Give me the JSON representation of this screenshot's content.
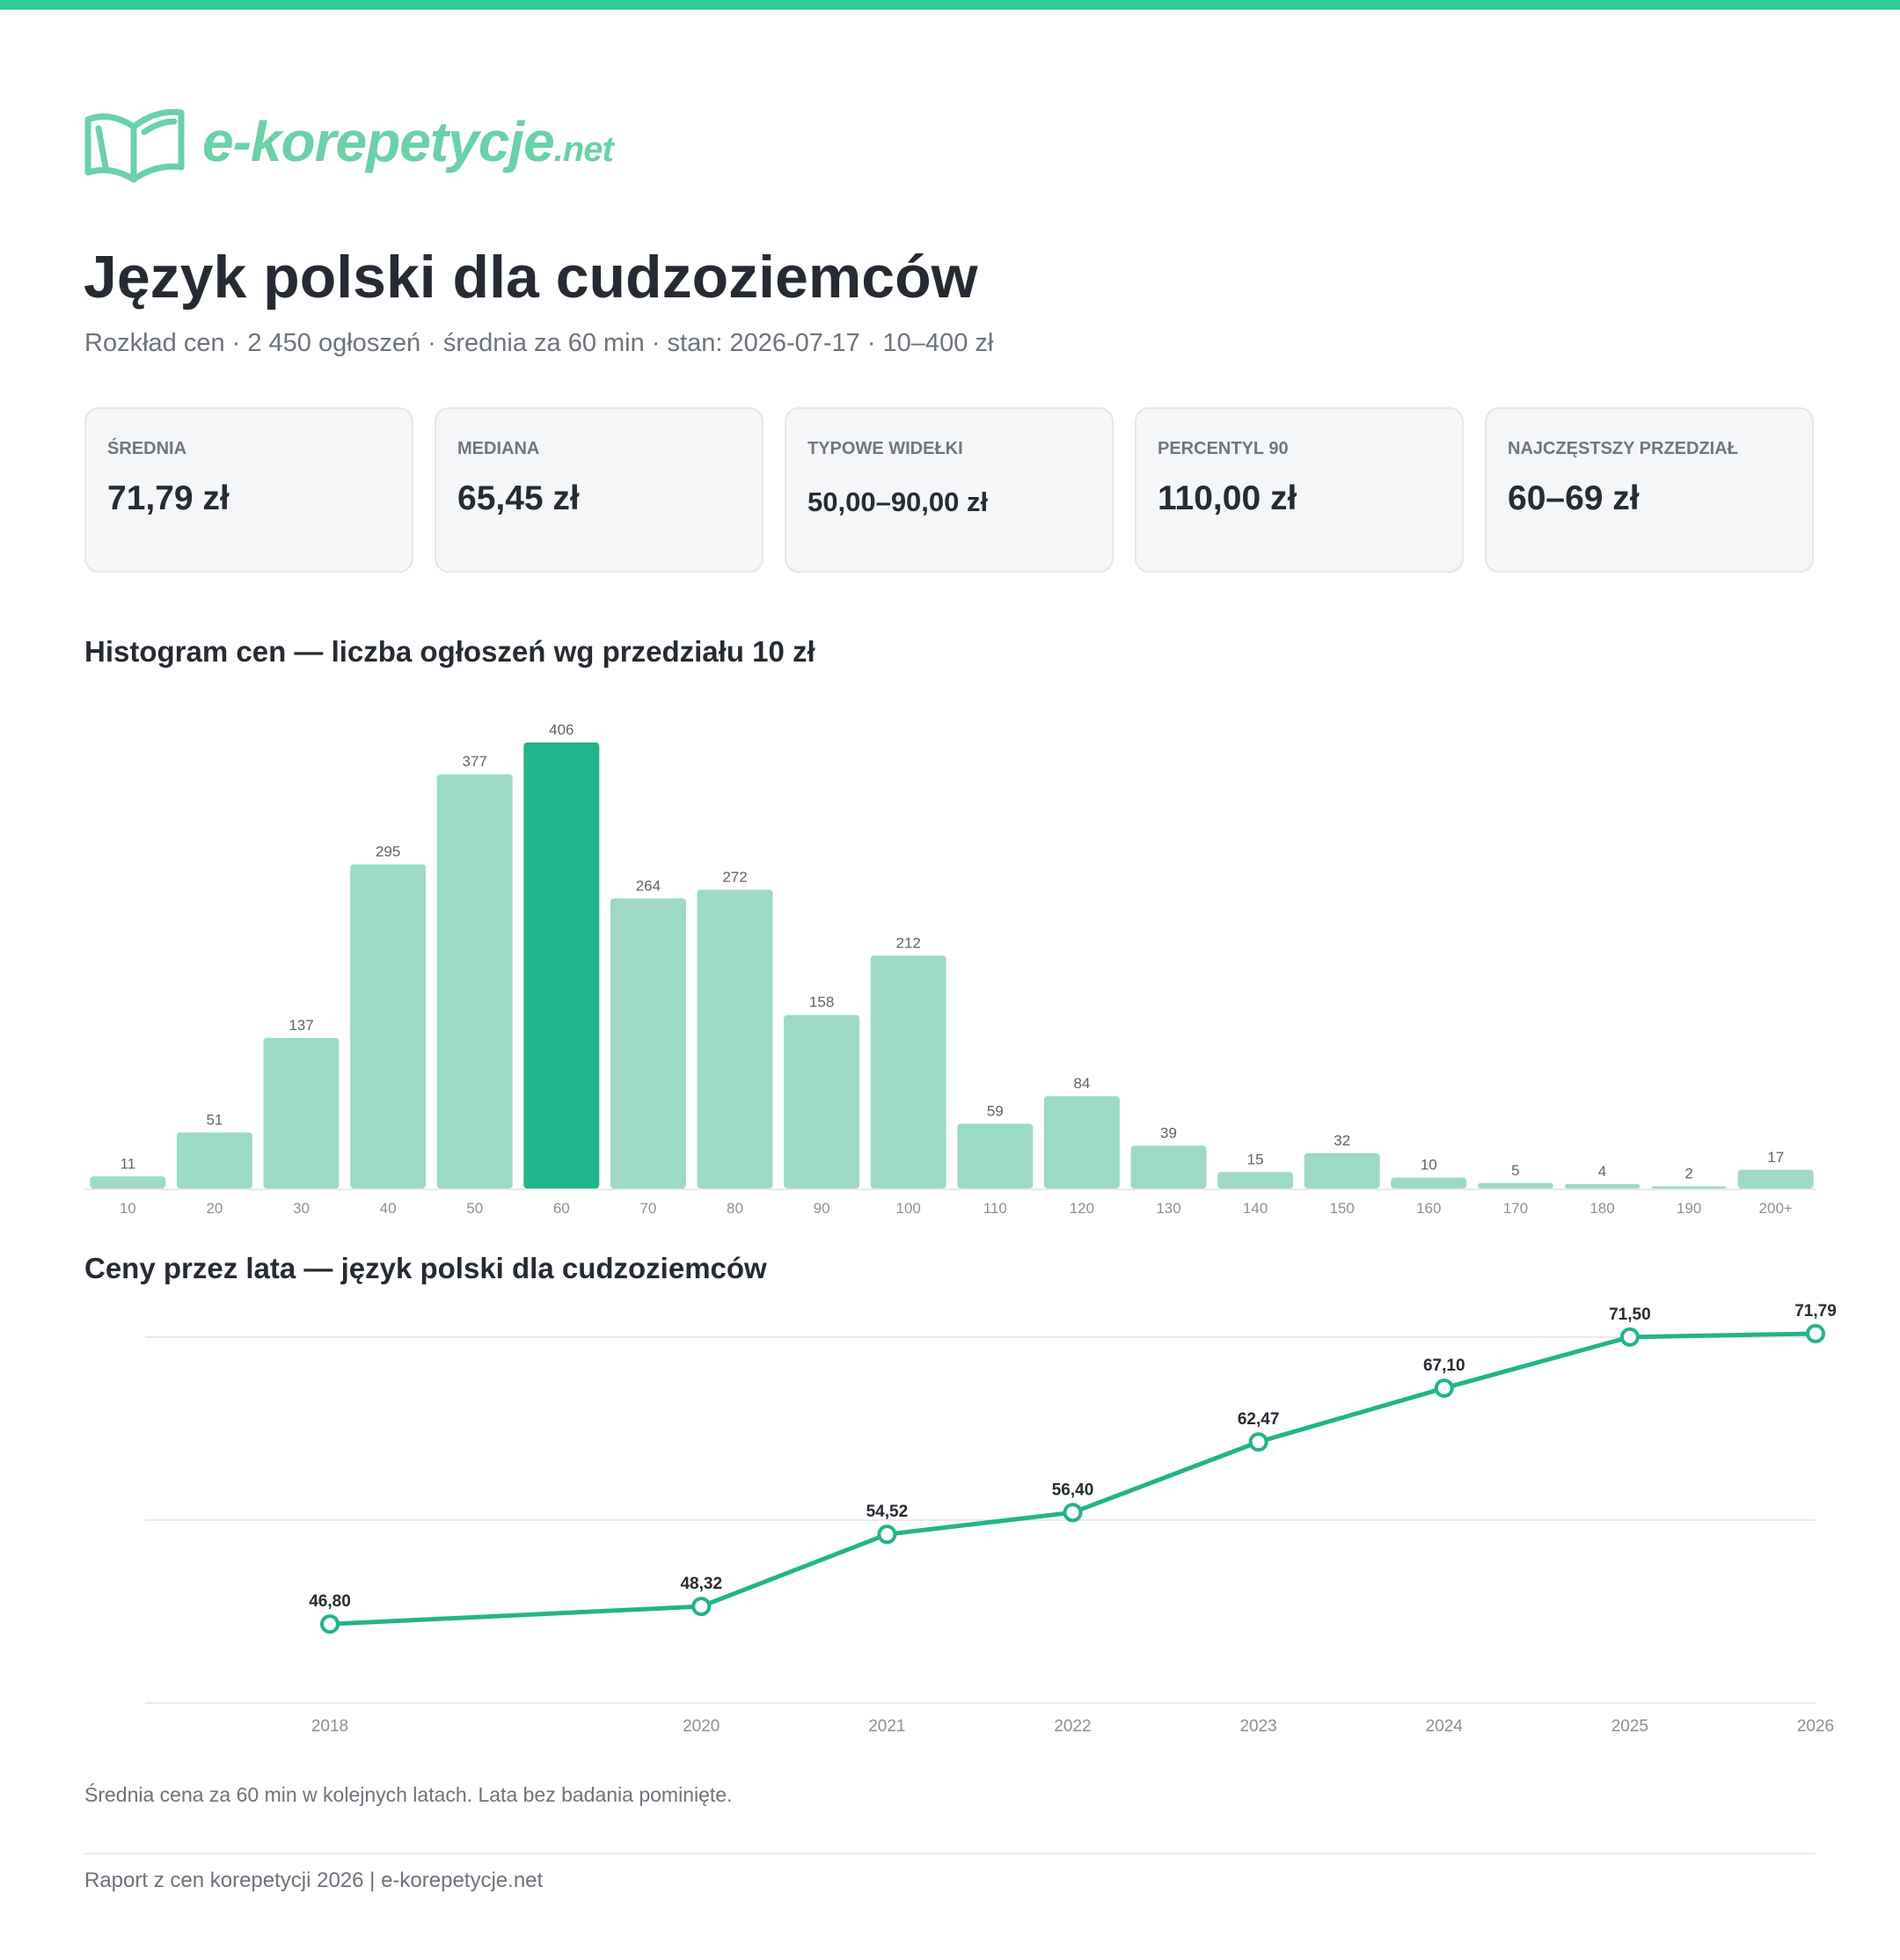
{
  "brand": {
    "name": "e-korepetycje",
    "tld": ".net",
    "accent_color": "#2fcc9a",
    "logo_color": "#6ad1aa",
    "icon": "open-book-icon"
  },
  "header": {
    "title": "Język polski dla cudzoziemców",
    "subtitle": "Rozkład cen · 2 450 ogłoszeń · średnia za 60 min · stan: 2026-07-17 · 10–400 zł"
  },
  "stats": [
    {
      "label": "ŚREDNIA",
      "value": "71,79 zł"
    },
    {
      "label": "MEDIANA",
      "value": "65,45 zł"
    },
    {
      "label": "TYPOWE WIDEŁKI",
      "value": "50,00–90,00 zł"
    },
    {
      "label": "PERCENTYL 90",
      "value": "110,00 zł"
    },
    {
      "label": "NAJCZĘSTSZY PRZEDZIAŁ",
      "value": "60–69 zł"
    }
  ],
  "histogram": {
    "title": "Histogram cen — liczba ogłoszeń wg przedziału 10 zł"
  },
  "trend": {
    "title": "Ceny przez lata — język polski dla cudzoziemców",
    "note": "Średnia cena za 60 min w kolejnych latach. Lata bez badania pominięte."
  },
  "footer": {
    "text": "Raport z cen korepetycji 2026 | e-korepetycje.net"
  },
  "chart_data": [
    {
      "type": "bar",
      "title": "Histogram cen — liczba ogłoszeń wg przedziału 10 zł",
      "categories": [
        "10",
        "20",
        "30",
        "40",
        "50",
        "60",
        "70",
        "80",
        "90",
        "100",
        "110",
        "120",
        "130",
        "140",
        "150",
        "160",
        "170",
        "180",
        "190",
        "200+"
      ],
      "values": [
        11,
        51,
        137,
        295,
        377,
        406,
        264,
        272,
        158,
        212,
        59,
        84,
        39,
        15,
        32,
        10,
        5,
        4,
        2,
        17
      ],
      "highlight_category": "60",
      "colors": {
        "bar": "#9ddac3",
        "highlight": "#22b48a"
      },
      "ylim": [
        0,
        406
      ],
      "grid": false
    },
    {
      "type": "line",
      "title": "Ceny przez lata — język polski dla cudzoziemców",
      "x": [
        2018,
        2020,
        2021,
        2022,
        2023,
        2024,
        2025,
        2026
      ],
      "x_labels": [
        "2018",
        "2020",
        "2021",
        "2022",
        "2023",
        "2024",
        "2025",
        "2026"
      ],
      "values": [
        46.8,
        48.32,
        54.52,
        56.4,
        62.47,
        67.1,
        71.5,
        71.79
      ],
      "value_labels": [
        "46,80",
        "48,32",
        "54,52",
        "56,40",
        "62,47",
        "67,10",
        "71,50",
        "71,79"
      ],
      "ylim": [
        40,
        73
      ],
      "grid": true,
      "colors": {
        "line": "#22b48a"
      }
    }
  ]
}
